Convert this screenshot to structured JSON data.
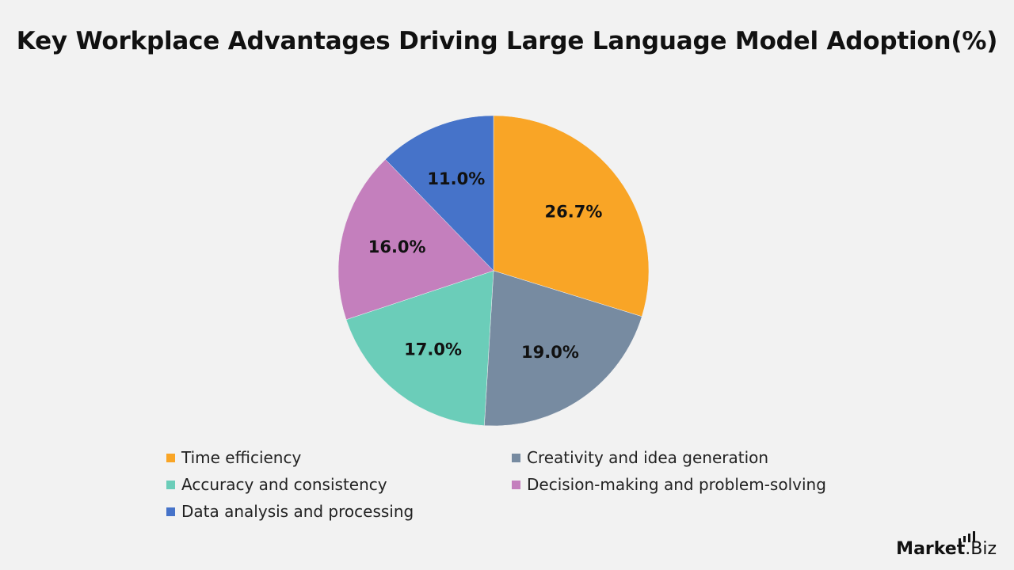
{
  "chart_data": {
    "type": "pie",
    "title": "Key Workplace Advantages Driving Large Language Model Adoption(%)",
    "slices": [
      {
        "label": "Time efficiency",
        "value": 26.7,
        "display": "26.7%",
        "color": "#f9a526"
      },
      {
        "label": "Creativity and idea generation",
        "value": 19.0,
        "display": "19.0%",
        "color": "#778ba1"
      },
      {
        "label": "Accuracy and consistency",
        "value": 17.0,
        "display": "17.0%",
        "color": "#6bcdb9"
      },
      {
        "label": "Decision-making and problem-solving",
        "value": 16.0,
        "display": "16.0%",
        "color": "#c47fbd"
      },
      {
        "label": "Data analysis and processing",
        "value": 11.0,
        "display": "11.0%",
        "color": "#4673c9"
      }
    ],
    "start_angle": "12 o'clock",
    "direction": "clockwise",
    "legend_position": "bottom"
  },
  "brand": {
    "name_bold": "Market",
    "name_rest": ".Biz"
  }
}
